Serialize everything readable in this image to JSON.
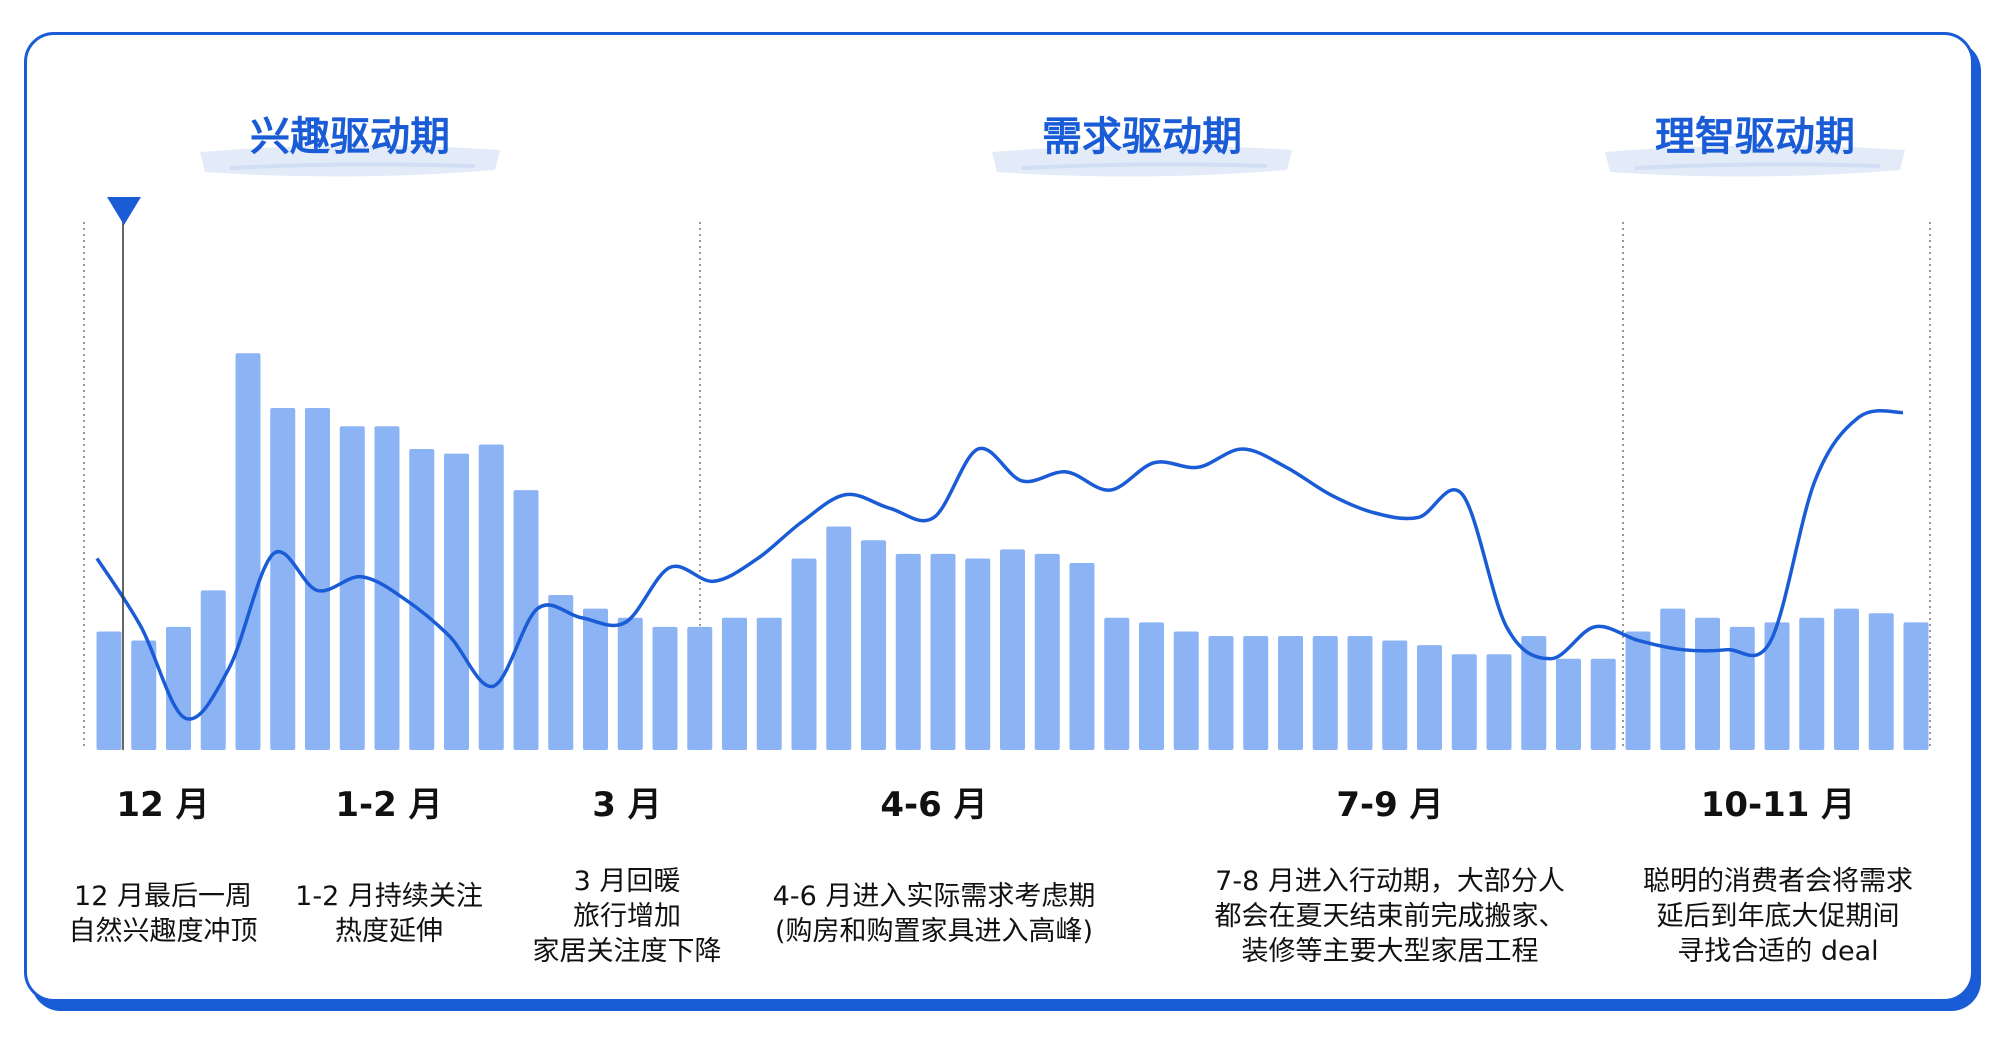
{
  "chart_data": {
    "type": "bar",
    "phases": [
      {
        "title": "兴趣驱动期"
      },
      {
        "title": "需求驱动期"
      },
      {
        "title": "理智驱动期"
      }
    ],
    "periods": [
      {
        "label": "12 月",
        "desc": [
          "12 月最后一周",
          "自然兴趣度冲顶"
        ]
      },
      {
        "label": "1-2 月",
        "desc": [
          "1-2 月持续关注",
          "热度延伸"
        ]
      },
      {
        "label": "3 月",
        "desc": [
          "3 月回暖",
          "旅行增加",
          "家居关注度下降"
        ]
      },
      {
        "label": "4-6 月",
        "desc": [
          "4-6 月进入实际需求考虑期",
          "(购房和购置家具进入高峰)"
        ]
      },
      {
        "label": "7-9 月",
        "desc": [
          "7-8 月进入行动期，大部分人",
          "都会在夏天结束前完成搬家、",
          "装修等主要大型家居工程"
        ]
      },
      {
        "label": "10-11 月",
        "desc": [
          "聪明的消费者会将需求",
          "延后到年底大促期间",
          "寻找合适的 deal"
        ]
      }
    ],
    "ylim": [
      0,
      100
    ],
    "series": [
      {
        "type": "bar",
        "color": "#8cb4f5",
        "values": [
          26,
          24,
          27,
          35,
          87,
          75,
          75,
          71,
          71,
          66,
          65,
          67,
          57,
          34,
          31,
          29,
          27,
          27,
          29,
          29,
          42,
          49,
          46,
          43,
          43,
          42,
          44,
          43,
          41,
          29,
          28,
          26,
          25,
          25,
          25,
          25,
          25,
          24,
          23,
          21,
          21,
          25,
          20,
          20,
          26,
          31,
          29,
          27,
          28,
          29,
          31,
          30,
          28
        ]
      },
      {
        "type": "line",
        "color": "#1a5bd6",
        "values": [
          42,
          27,
          7,
          18,
          43,
          35,
          38,
          33,
          25,
          14,
          31,
          29,
          28,
          40,
          37,
          42,
          50,
          56,
          53,
          51,
          66,
          59,
          61,
          57,
          63,
          62,
          66,
          62,
          56,
          52,
          51,
          56,
          27,
          20,
          27,
          24,
          22,
          22,
          24,
          59,
          73,
          74
        ]
      }
    ],
    "marker_position": "12 月"
  }
}
